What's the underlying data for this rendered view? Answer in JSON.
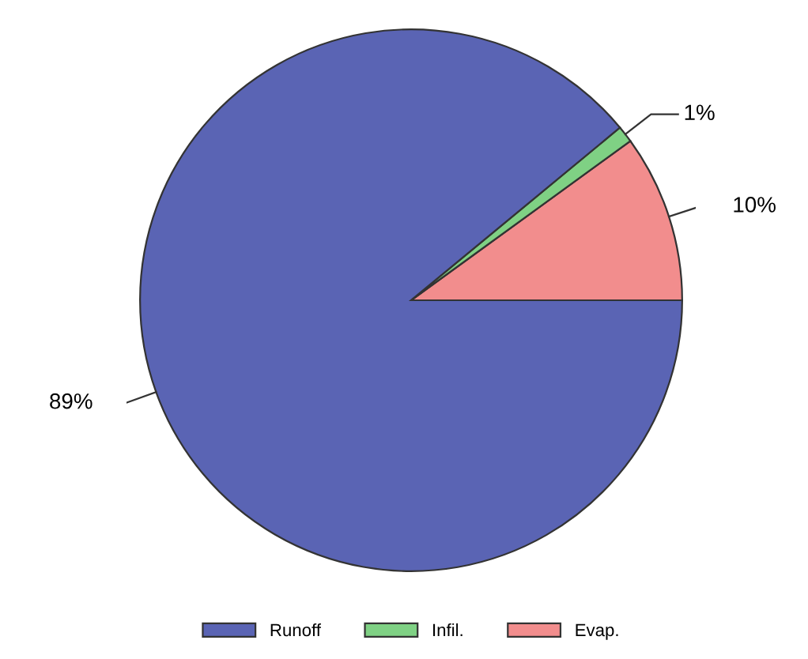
{
  "chart_data": {
    "type": "pie",
    "categories": [
      "Runoff",
      "Infil.",
      "Evap."
    ],
    "values": [
      89,
      1,
      10
    ],
    "colors": [
      "#5a64b4",
      "#7fd184",
      "#f28d8d"
    ],
    "value_labels": [
      "89%",
      "1%",
      "10%"
    ],
    "legend": "bottom"
  }
}
